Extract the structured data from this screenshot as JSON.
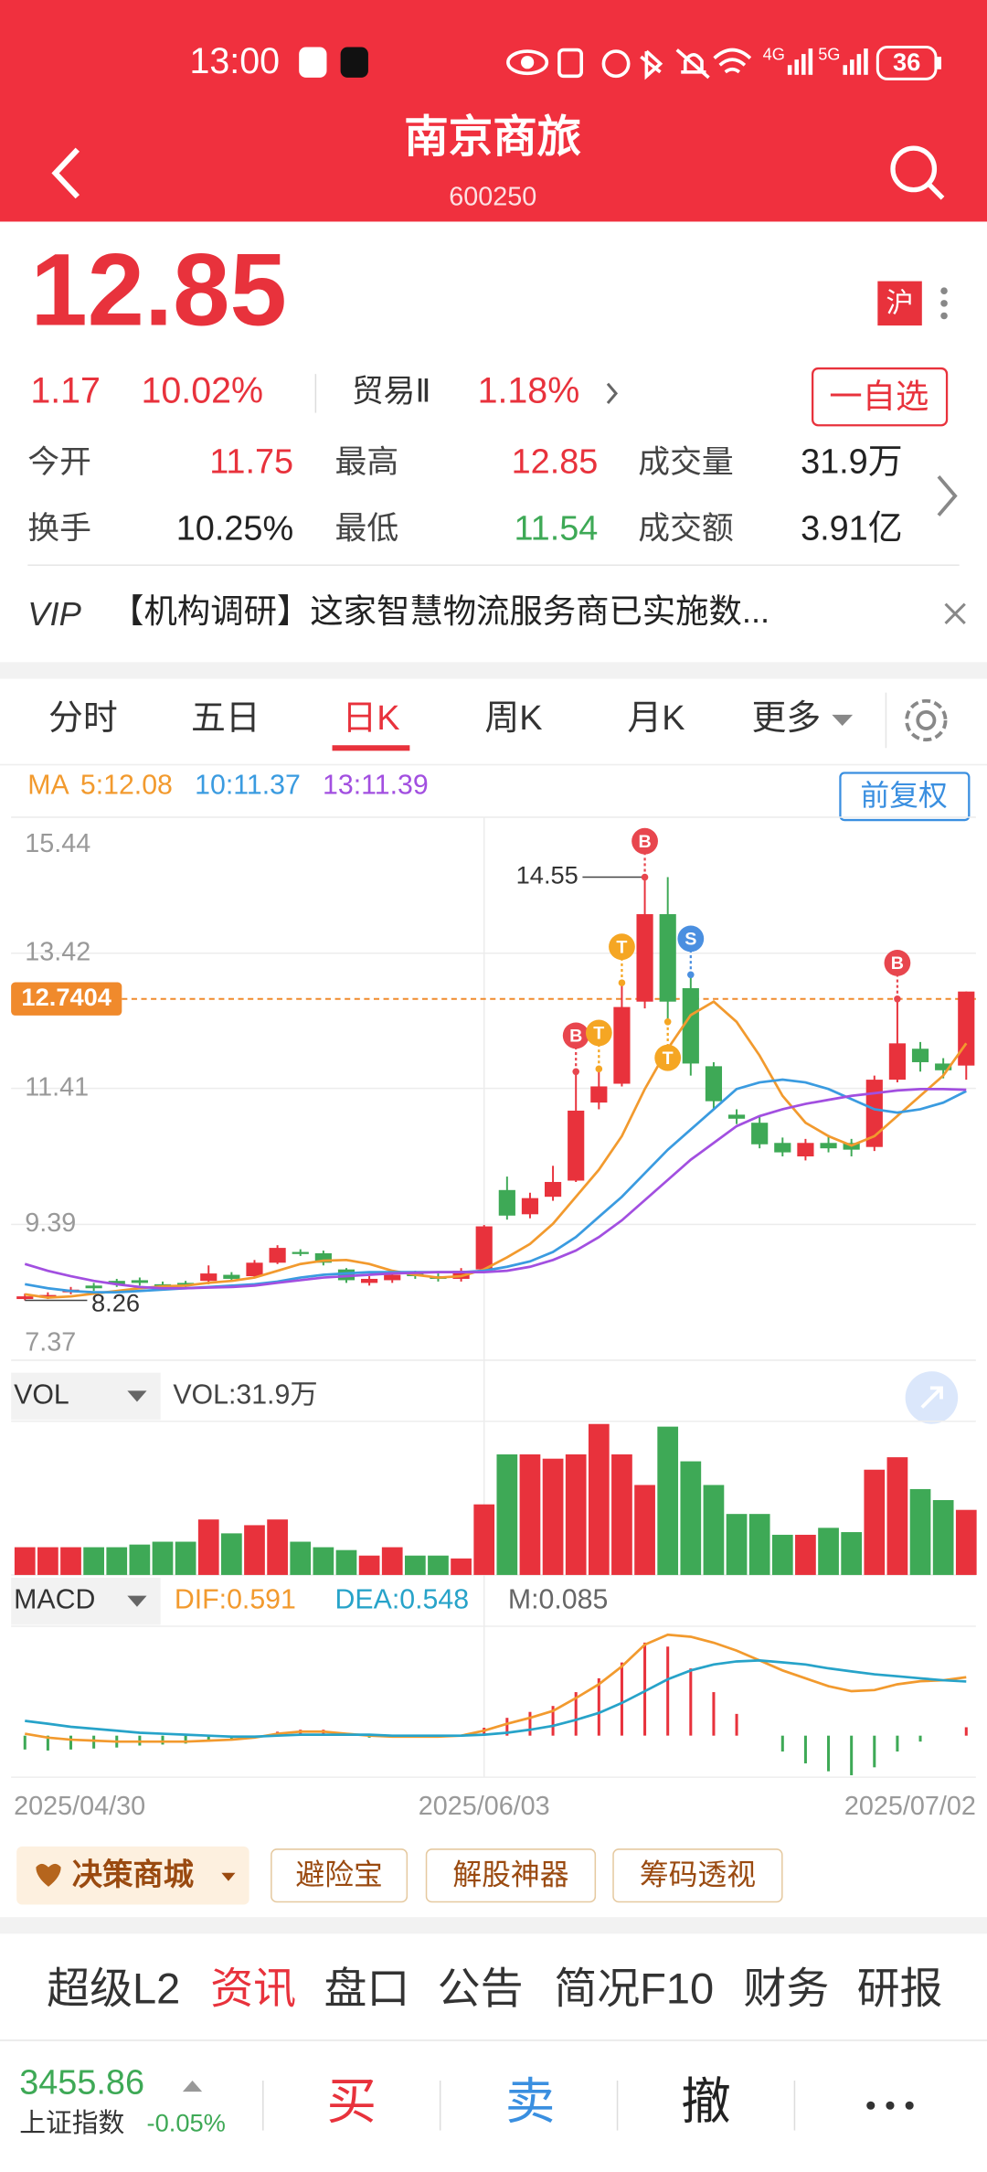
{
  "status_bar": {
    "time": "13:00",
    "network_1": "4G",
    "network_2": "5G",
    "battery": "36"
  },
  "header": {
    "title": "南京商旅",
    "code": "600250"
  },
  "quote": {
    "price": "12.85",
    "change": "1.17",
    "change_pct": "10.02%",
    "sector": "贸易Ⅱ",
    "sector_pct": "1.18%",
    "exchange": "沪",
    "watchlist": "一自选",
    "stats": [
      {
        "label": "今开",
        "value": "11.75"
      },
      {
        "label": "最高",
        "value": "12.85"
      },
      {
        "label": "成交量",
        "value": "31.9万"
      },
      {
        "label": "换手",
        "value": "10.25%"
      },
      {
        "label": "最低",
        "value": "11.54"
      },
      {
        "label": "成交额",
        "value": "3.91亿"
      }
    ]
  },
  "news": {
    "badge": "VIP",
    "text": "【机构调研】这家智慧物流服务商已实施数..."
  },
  "tabs": [
    "分时",
    "五日",
    "日K",
    "周K",
    "月K",
    "更多"
  ],
  "chart_data": {
    "type": "candlestick",
    "categories": [
      "2025/04/30",
      null,
      null,
      null,
      null,
      null,
      null,
      null,
      null,
      null,
      null,
      null,
      null,
      null,
      null,
      null,
      null,
      null,
      null,
      null,
      "2025/06/03",
      null,
      null,
      null,
      null,
      null,
      null,
      null,
      null,
      null,
      null,
      null,
      null,
      null,
      null,
      null,
      null,
      null,
      null,
      null,
      null,
      "2025/07/02"
    ],
    "open": [
      8.28,
      8.3,
      8.38,
      8.48,
      8.55,
      8.56,
      8.5,
      8.52,
      8.55,
      8.64,
      8.62,
      8.82,
      8.98,
      8.96,
      8.72,
      8.52,
      8.56,
      8.66,
      8.62,
      8.58,
      8.72,
      9.9,
      9.54,
      9.8,
      10.04,
      11.2,
      11.48,
      12.7,
      14.0,
      12.9,
      11.74,
      11.02,
      10.9,
      10.6,
      10.4,
      10.6,
      10.6,
      10.54,
      11.54,
      12.0,
      11.78,
      11.75
    ],
    "high": [
      8.36,
      8.38,
      8.46,
      8.52,
      8.58,
      8.6,
      8.54,
      8.55,
      8.78,
      8.68,
      8.86,
      9.08,
      9.02,
      9.0,
      8.74,
      8.62,
      8.68,
      8.7,
      8.66,
      8.74,
      9.38,
      10.1,
      9.86,
      10.26,
      11.66,
      11.7,
      12.98,
      14.55,
      14.55,
      13.1,
      11.8,
      11.1,
      11.0,
      10.68,
      10.66,
      10.72,
      10.66,
      11.6,
      12.74,
      12.1,
      11.86,
      12.85
    ],
    "low": [
      8.26,
      8.28,
      8.35,
      8.4,
      8.46,
      8.48,
      8.42,
      8.44,
      8.5,
      8.54,
      8.6,
      8.8,
      8.92,
      8.78,
      8.52,
      8.48,
      8.52,
      8.58,
      8.54,
      8.54,
      8.7,
      9.46,
      9.48,
      9.74,
      10.02,
      11.1,
      11.44,
      12.6,
      12.4,
      11.6,
      11.1,
      10.88,
      10.52,
      10.4,
      10.34,
      10.46,
      10.4,
      10.48,
      11.5,
      11.66,
      11.56,
      11.54
    ],
    "close": [
      8.32,
      8.34,
      8.42,
      8.44,
      8.5,
      8.52,
      8.46,
      8.49,
      8.66,
      8.58,
      8.82,
      9.04,
      8.96,
      8.82,
      8.56,
      8.58,
      8.64,
      8.62,
      8.58,
      8.7,
      9.36,
      9.52,
      9.78,
      10.02,
      11.08,
      11.44,
      12.62,
      14.0,
      12.7,
      11.78,
      11.22,
      10.96,
      10.58,
      10.46,
      10.6,
      10.52,
      10.5,
      11.54,
      12.08,
      11.8,
      11.68,
      12.85
    ],
    "up_color": "#e8323c",
    "down_color": "#3ea956",
    "ma_label": "MA",
    "ma": [
      {
        "name": "5:12.08",
        "color": "#f29a2e",
        "values": [
          8.35,
          8.3,
          8.32,
          8.36,
          8.4,
          8.44,
          8.47,
          8.48,
          8.52,
          8.55,
          8.6,
          8.7,
          8.8,
          8.85,
          8.86,
          8.8,
          8.7,
          8.64,
          8.6,
          8.62,
          8.72,
          8.9,
          9.1,
          9.4,
          9.8,
          10.2,
          10.7,
          11.4,
          12.0,
          12.5,
          12.7,
          12.4,
          11.9,
          11.3,
          10.9,
          10.7,
          10.56,
          10.7,
          11.0,
          11.3,
          11.6,
          12.08
        ]
      },
      {
        "name": "10:11.37",
        "color": "#3a9be0",
        "values": [
          8.5,
          8.44,
          8.4,
          8.38,
          8.38,
          8.4,
          8.42,
          8.44,
          8.46,
          8.48,
          8.5,
          8.54,
          8.6,
          8.64,
          8.66,
          8.68,
          8.68,
          8.68,
          8.68,
          8.68,
          8.7,
          8.76,
          8.84,
          8.98,
          9.2,
          9.5,
          9.8,
          10.15,
          10.5,
          10.8,
          11.1,
          11.4,
          11.5,
          11.54,
          11.5,
          11.4,
          11.25,
          11.1,
          11.05,
          11.1,
          11.2,
          11.37
        ]
      },
      {
        "name": "13:11.39",
        "color": "#a24fe0",
        "values": [
          8.8,
          8.7,
          8.62,
          8.55,
          8.5,
          8.46,
          8.44,
          8.44,
          8.45,
          8.46,
          8.48,
          8.52,
          8.56,
          8.6,
          8.62,
          8.64,
          8.66,
          8.67,
          8.68,
          8.68,
          8.68,
          8.7,
          8.76,
          8.86,
          9.0,
          9.2,
          9.45,
          9.75,
          10.05,
          10.35,
          10.6,
          10.85,
          11.0,
          11.1,
          11.18,
          11.24,
          11.3,
          11.34,
          11.38,
          11.4,
          11.4,
          11.39
        ]
      }
    ],
    "adjust_label": "前复权",
    "ylim": [
      7.37,
      15.44
    ],
    "yticks": [
      15.44,
      13.42,
      11.41,
      9.39,
      7.37
    ],
    "ref_price": 12.7404,
    "max_price": 14.55,
    "min_price": 8.26,
    "signals": [
      null,
      null,
      null,
      null,
      null,
      null,
      null,
      null,
      null,
      null,
      null,
      null,
      null,
      null,
      null,
      null,
      null,
      null,
      null,
      null,
      null,
      null,
      null,
      null,
      {
        "label": "B",
        "color": "#e8464e",
        "side": "above"
      },
      {
        "label": "T",
        "color": "#f5a623",
        "side": "above"
      },
      {
        "label": "T",
        "color": "#f5a623",
        "side": "above"
      },
      {
        "label": "B",
        "color": "#e8464e",
        "side": "above"
      },
      {
        "label": "T",
        "color": "#f5a623",
        "side": "below"
      },
      {
        "label": "S",
        "color": "#4a8fe0",
        "side": "above"
      },
      null,
      null,
      null,
      null,
      null,
      null,
      null,
      null,
      {
        "label": "B",
        "color": "#e8464e",
        "side": "above"
      },
      null,
      null,
      null
    ],
    "volume": {
      "label": "VOL",
      "value_label": "VOL:31.9万",
      "ylim": [
        0,
        74.0
      ],
      "values": [
        13.6,
        13.6,
        13.6,
        13.6,
        13.6,
        14.9,
        16.3,
        16.3,
        27.2,
        20.4,
        24.4,
        27.2,
        16.3,
        13.6,
        12.2,
        9.5,
        13.6,
        9.5,
        9.5,
        8.1,
        34.6,
        59.1,
        59.1,
        57.0,
        59.1,
        74.0,
        59.1,
        44.1,
        72.7,
        55.7,
        44.1,
        29.9,
        29.9,
        19.7,
        19.7,
        23.1,
        21.0,
        51.6,
        57.7,
        42.1,
        36.7,
        31.9
      ]
    },
    "macd": {
      "label": "MACD",
      "ylim": [
        -0.42,
        1.05
      ],
      "dif": {
        "name": "DIF:0.591",
        "color": "#f29a2e",
        "values": [
          0.02,
          -0.02,
          -0.04,
          -0.05,
          -0.06,
          -0.06,
          -0.06,
          -0.06,
          -0.05,
          -0.04,
          -0.02,
          0.02,
          0.04,
          0.04,
          0.02,
          0.0,
          -0.01,
          -0.01,
          -0.01,
          0.0,
          0.05,
          0.12,
          0.18,
          0.25,
          0.38,
          0.52,
          0.7,
          0.92,
          1.02,
          1.0,
          0.94,
          0.86,
          0.76,
          0.66,
          0.58,
          0.5,
          0.45,
          0.46,
          0.52,
          0.55,
          0.56,
          0.591
        ]
      },
      "dea": {
        "name": "DEA:0.548",
        "color": "#27a3c9",
        "values": [
          0.15,
          0.12,
          0.09,
          0.07,
          0.05,
          0.03,
          0.02,
          0.01,
          0.0,
          -0.01,
          -0.01,
          0.0,
          0.01,
          0.01,
          0.01,
          0.01,
          0.0,
          0.0,
          0.0,
          0.0,
          0.01,
          0.03,
          0.06,
          0.1,
          0.16,
          0.23,
          0.33,
          0.45,
          0.57,
          0.66,
          0.72,
          0.75,
          0.76,
          0.74,
          0.72,
          0.68,
          0.65,
          0.62,
          0.6,
          0.58,
          0.56,
          0.548
        ]
      },
      "m": {
        "name": "M:0.085",
        "values": [
          -0.14,
          -0.15,
          -0.14,
          -0.13,
          -0.12,
          -0.1,
          -0.09,
          -0.08,
          -0.06,
          -0.04,
          -0.02,
          0.04,
          0.06,
          0.06,
          0.02,
          -0.02,
          -0.02,
          -0.02,
          -0.02,
          0.0,
          0.08,
          0.18,
          0.24,
          0.3,
          0.44,
          0.58,
          0.74,
          0.94,
          0.9,
          0.68,
          0.44,
          0.22,
          0.0,
          -0.16,
          -0.28,
          -0.36,
          -0.4,
          -0.32,
          -0.16,
          -0.06,
          0.0,
          0.085
        ]
      }
    }
  },
  "tools": [
    "决策商城",
    "避险宝",
    "解股神器",
    "筹码透视"
  ],
  "bottom_tabs": [
    "超级L2",
    "资讯",
    "盘口",
    "公告",
    "简况F10",
    "财务",
    "研报"
  ],
  "footer": {
    "index_value": "3455.86",
    "index_name": "上证指数",
    "index_change": "-0.05%",
    "buy": "买",
    "sell": "卖",
    "cancel": "撤"
  }
}
